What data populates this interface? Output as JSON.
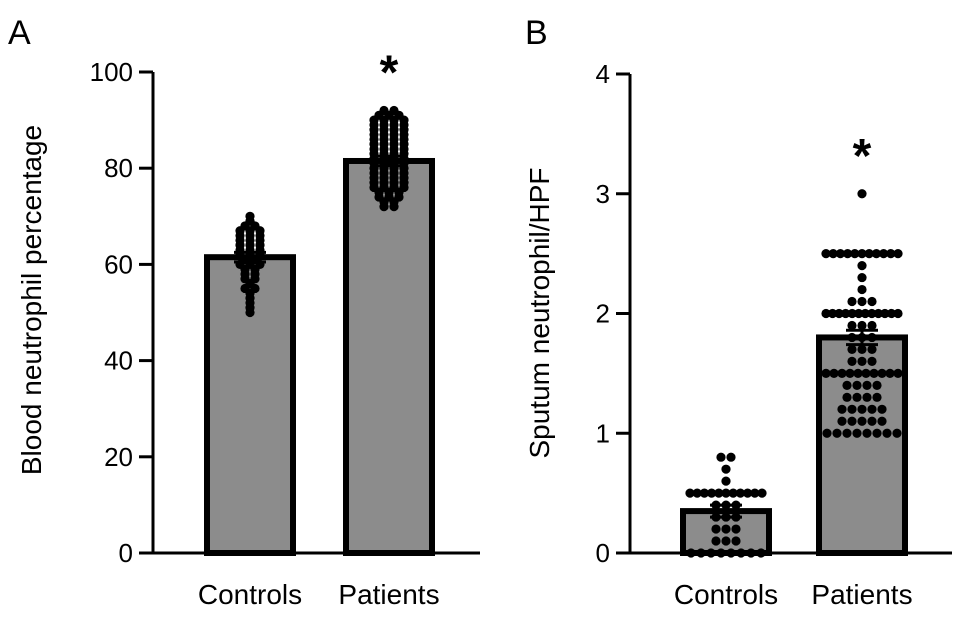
{
  "chart_data": [
    {
      "panel": "A",
      "type": "bar",
      "ylabel": "Blood neutrophil percentage",
      "xlabel": "",
      "ylim": [
        0,
        100
      ],
      "yticks": [
        0,
        20,
        40,
        60,
        80,
        100
      ],
      "categories": [
        "Controls",
        "Patients"
      ],
      "values": [
        61.5,
        81.5
      ],
      "error": [
        1.0,
        1.0
      ],
      "significance": [
        "",
        "*"
      ],
      "points": [
        [
          50,
          51,
          52,
          53,
          54,
          55,
          55,
          56,
          57,
          57,
          58,
          58,
          59,
          59,
          60,
          60,
          60,
          61,
          61,
          62,
          62,
          62,
          63,
          63,
          63,
          64,
          64,
          64,
          65,
          65,
          65,
          66,
          66,
          66,
          67,
          67,
          67,
          68,
          68,
          69,
          70
        ],
        [
          72,
          72,
          73,
          73,
          74,
          74,
          74,
          75,
          75,
          75,
          76,
          76,
          76,
          76,
          77,
          77,
          77,
          77,
          78,
          78,
          78,
          78,
          79,
          79,
          79,
          79,
          80,
          80,
          80,
          80,
          81,
          81,
          81,
          81,
          82,
          82,
          82,
          82,
          83,
          83,
          83,
          83,
          84,
          84,
          84,
          84,
          85,
          85,
          85,
          85,
          86,
          86,
          86,
          86,
          87,
          87,
          87,
          87,
          88,
          88,
          88,
          88,
          89,
          89,
          89,
          89,
          90,
          90,
          90,
          90,
          91,
          91,
          91,
          92,
          92
        ]
      ]
    },
    {
      "panel": "B",
      "type": "bar",
      "ylabel": "Sputum neutrophil/HPF",
      "xlabel": "",
      "ylim": [
        0,
        4
      ],
      "yticks": [
        0,
        1,
        2,
        3,
        4
      ],
      "categories": [
        "Controls",
        "Patients"
      ],
      "values": [
        0.35,
        1.8
      ],
      "error": [
        0.05,
        0.06
      ],
      "significance": [
        "",
        "*"
      ],
      "points": [
        [
          0,
          0,
          0,
          0,
          0,
          0,
          0,
          0,
          0.1,
          0.1,
          0.1,
          0.2,
          0.2,
          0.2,
          0.3,
          0.3,
          0.3,
          0.4,
          0.4,
          0.4,
          0.5,
          0.5,
          0.5,
          0.5,
          0.5,
          0.5,
          0.5,
          0.5,
          0.5,
          0.5,
          0.5,
          0.6,
          0.7,
          0.8,
          0.8
        ],
        [
          1.0,
          1.0,
          1.0,
          1.0,
          1.0,
          1.0,
          1.0,
          1.0,
          1.1,
          1.1,
          1.1,
          1.1,
          1.1,
          1.2,
          1.2,
          1.2,
          1.2,
          1.2,
          1.3,
          1.3,
          1.3,
          1.3,
          1.4,
          1.4,
          1.4,
          1.4,
          1.5,
          1.5,
          1.5,
          1.5,
          1.5,
          1.5,
          1.5,
          1.5,
          1.5,
          1.5,
          1.6,
          1.6,
          1.6,
          1.7,
          1.7,
          1.7,
          1.8,
          1.8,
          1.8,
          1.9,
          1.9,
          1.9,
          2.0,
          2.0,
          2.0,
          2.0,
          2.0,
          2.0,
          2.0,
          2.0,
          2.0,
          2.0,
          2.0,
          2.0,
          2.1,
          2.1,
          2.1,
          2.2,
          2.3,
          2.4,
          2.5,
          2.5,
          2.5,
          2.5,
          2.5,
          2.5,
          2.5,
          2.5,
          2.5,
          2.5,
          2.5,
          3.0
        ]
      ]
    }
  ]
}
